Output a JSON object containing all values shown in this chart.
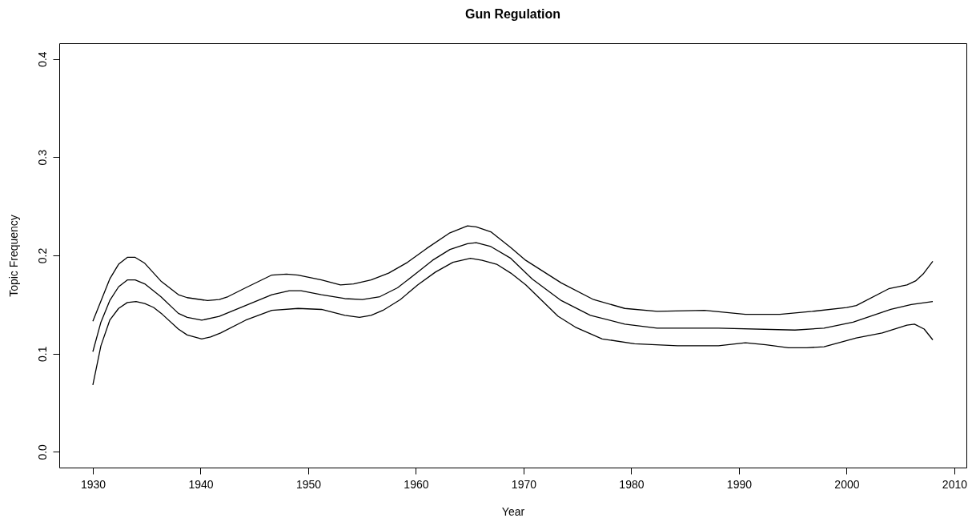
{
  "chart_data": {
    "type": "line",
    "title": "Gun Regulation",
    "xlabel": "Year",
    "ylabel": "Topic Frequency",
    "xlim": [
      1926.88,
      2011.12
    ],
    "ylim": [
      -0.016,
      0.416
    ],
    "xticks": [
      1930,
      1940,
      1950,
      1960,
      1970,
      1980,
      1990,
      2000,
      2010
    ],
    "yticks": [
      {
        "value": 0,
        "label": "0.0"
      },
      0.1,
      0.2,
      0.3,
      0.4
    ],
    "series": [
      {
        "color": "#000000",
        "x": [
          1930.0,
          1931.57,
          1932.39,
          1933.2,
          1933.93,
          1934.82,
          1936.31,
          1937.94,
          1938.76,
          1940.65,
          1941.74,
          1942.55,
          1944.18,
          1946.62,
          1947.98,
          1949.06,
          1951.23,
          1952.99,
          1954.21,
          1955.84,
          1957.47,
          1959.23,
          1960.99,
          1963.16,
          1964.79,
          1965.6,
          1966.96,
          1968.81,
          1970.2,
          1973.5,
          1976.5,
          1979.4,
          1982.4,
          1986.8,
          1990.6,
          1993.8,
          1996.8,
          2000.0,
          2000.9,
          2003.9,
          2005.6,
          2006.4,
          2007.1,
          2008.0
        ],
        "values": [
          0.133,
          0.176,
          0.191,
          0.198,
          0.198,
          0.192,
          0.174,
          0.16,
          0.157,
          0.154,
          0.155,
          0.158,
          0.167,
          0.18,
          0.181,
          0.18,
          0.175,
          0.17,
          0.171,
          0.175,
          0.182,
          0.193,
          0.207,
          0.223,
          0.23,
          0.229,
          0.224,
          0.208,
          0.195,
          0.172,
          0.155,
          0.146,
          0.143,
          0.144,
          0.14,
          0.14,
          0.143,
          0.147,
          0.149,
          0.166,
          0.17,
          0.174,
          0.181,
          0.194
        ]
      },
      {
        "color": "#000000",
        "x": [
          1930.0,
          1930.75,
          1931.57,
          1932.39,
          1933.2,
          1933.93,
          1934.82,
          1936.31,
          1937.94,
          1938.76,
          1940.11,
          1941.74,
          1944.18,
          1946.62,
          1948.25,
          1949.33,
          1951.23,
          1953.4,
          1955.03,
          1956.66,
          1958.29,
          1960.18,
          1961.54,
          1963.16,
          1964.79,
          1965.6,
          1966.96,
          1968.81,
          1970.8,
          1973.5,
          1976.2,
          1979.4,
          1982.4,
          1988.1,
          1995.2,
          1997.9,
          2000.6,
          2004.1,
          2006.0,
          2008.0
        ],
        "values": [
          0.102,
          0.132,
          0.154,
          0.168,
          0.175,
          0.175,
          0.171,
          0.158,
          0.141,
          0.137,
          0.134,
          0.138,
          0.149,
          0.16,
          0.164,
          0.164,
          0.16,
          0.156,
          0.155,
          0.158,
          0.167,
          0.183,
          0.195,
          0.206,
          0.212,
          0.213,
          0.209,
          0.197,
          0.176,
          0.154,
          0.139,
          0.13,
          0.126,
          0.126,
          0.124,
          0.126,
          0.132,
          0.145,
          0.15,
          0.153
        ]
      },
      {
        "color": "#000000",
        "x": [
          1930.0,
          1930.75,
          1931.57,
          1932.39,
          1933.2,
          1934.01,
          1934.82,
          1935.64,
          1936.45,
          1937.94,
          1938.76,
          1940.11,
          1940.93,
          1941.87,
          1944.18,
          1946.62,
          1949.06,
          1951.23,
          1953.4,
          1954.76,
          1955.84,
          1956.93,
          1958.55,
          1960.18,
          1961.81,
          1963.44,
          1965.06,
          1966.15,
          1967.5,
          1968.81,
          1970.2,
          1973.2,
          1974.8,
          1977.3,
          1980.3,
          1984.3,
          1988.1,
          1990.6,
          1992.5,
          1994.6,
          1996.3,
          1997.9,
          2000.9,
          2003.3,
          2005.6,
          2006.3,
          2007.2,
          2008.0
        ],
        "values": [
          0.068,
          0.108,
          0.134,
          0.146,
          0.152,
          0.153,
          0.151,
          0.147,
          0.14,
          0.125,
          0.119,
          0.115,
          0.117,
          0.121,
          0.134,
          0.144,
          0.146,
          0.145,
          0.139,
          0.137,
          0.139,
          0.144,
          0.155,
          0.17,
          0.183,
          0.193,
          0.197,
          0.195,
          0.191,
          0.182,
          0.17,
          0.138,
          0.127,
          0.115,
          0.11,
          0.108,
          0.108,
          0.111,
          0.109,
          0.106,
          0.106,
          0.107,
          0.116,
          0.121,
          0.129,
          0.13,
          0.125,
          0.114
        ]
      }
    ]
  }
}
